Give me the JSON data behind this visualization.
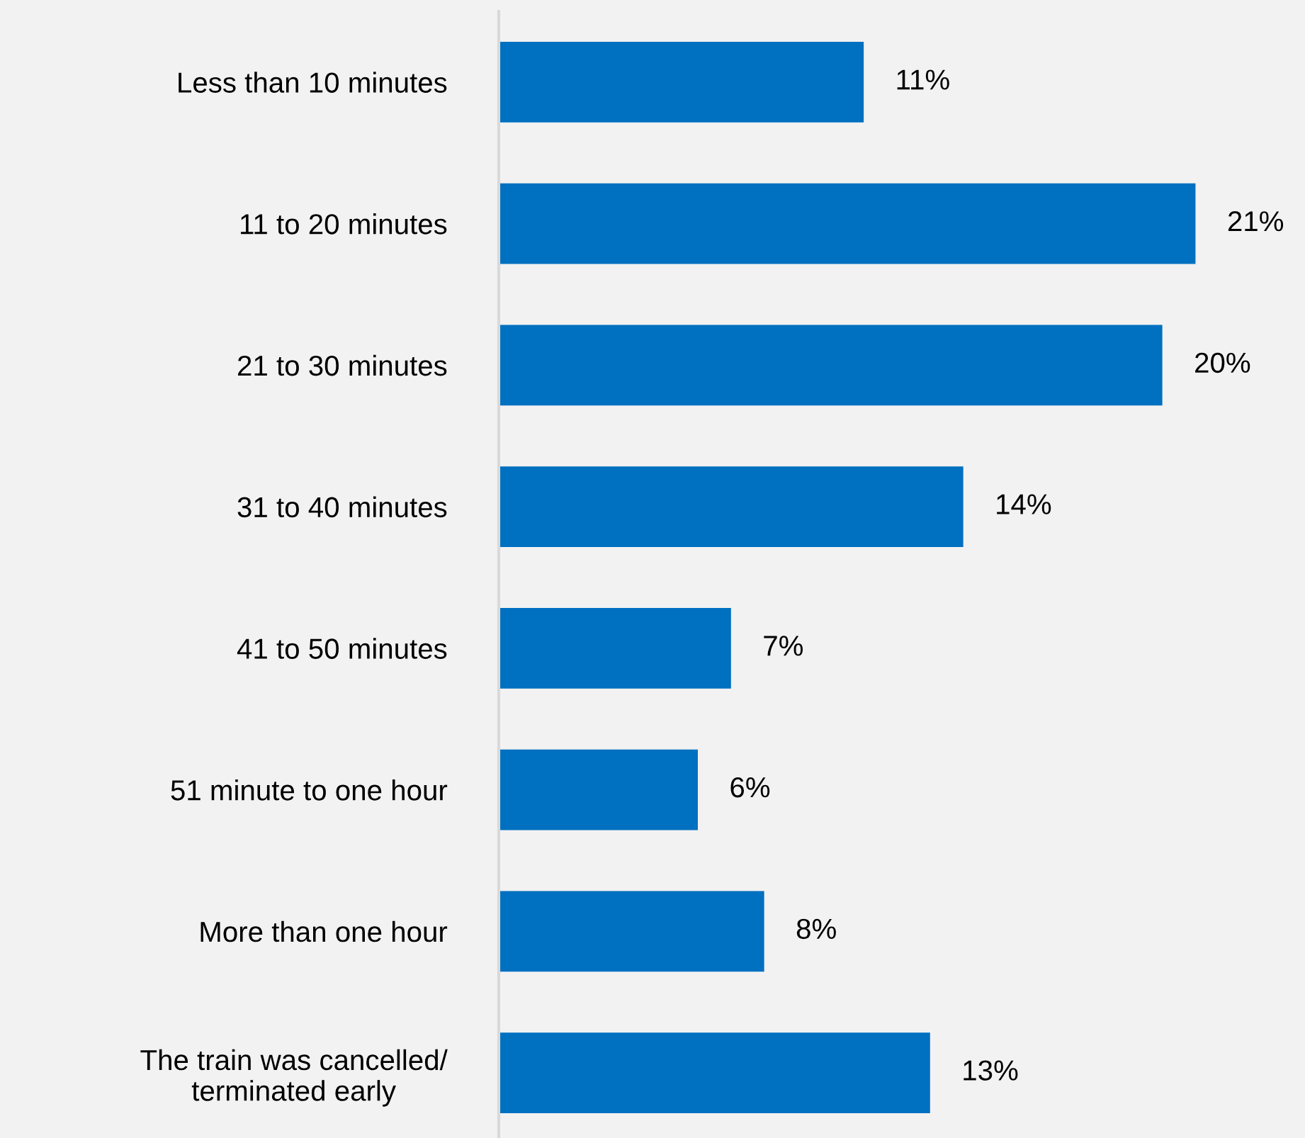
{
  "chart_data": {
    "type": "bar",
    "orientation": "horizontal",
    "categories": [
      "Less than 10 minutes",
      "11 to 20 minutes",
      "21 to 30 minutes",
      "31 to 40 minutes",
      "41 to 50 minutes",
      "51 minute to one hour",
      "More than one hour",
      "The train was cancelled/\nterminated early"
    ],
    "values": [
      11,
      21,
      20,
      14,
      7,
      6,
      8,
      13
    ],
    "value_labels": [
      "11%",
      "21%",
      "20%",
      "14%",
      "7%",
      "6%",
      "8%",
      "13%"
    ],
    "color": "#0070c0",
    "xlim": [
      0,
      24.3
    ],
    "tick_labels": "y",
    "grid": false,
    "legend": false
  }
}
